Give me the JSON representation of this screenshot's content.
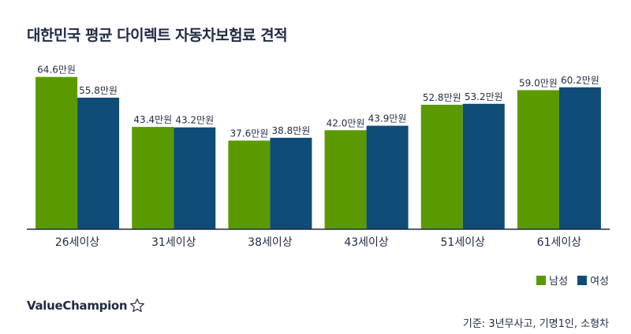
{
  "title": "대한민국 평균 다이렉트 자동차보험료 견적",
  "brand": {
    "name": "ValueChampion",
    "icon": "star-outline-icon"
  },
  "note": "기준: 3년무사고, 기명1인, 소형차",
  "colors": {
    "male": "#5a9a00",
    "female": "#0f4c78",
    "axis": "#1f2a44",
    "text": "#1f2a44"
  },
  "chart_data": {
    "type": "bar",
    "title": "대한민국 평균 다이렉트 자동차보험료 견적",
    "categories": [
      "26세이상",
      "31세이상",
      "38세이상",
      "43세이상",
      "51세이상",
      "61세이상"
    ],
    "series": [
      {
        "name": "남성",
        "values": [
          64.6,
          43.4,
          37.6,
          42.0,
          52.8,
          59.0
        ],
        "labels": [
          "64.6만원",
          "43.4만원",
          "37.6만원",
          "42.0만원",
          "52.8만원",
          "59.0만원"
        ]
      },
      {
        "name": "여성",
        "values": [
          55.8,
          43.2,
          38.8,
          43.9,
          53.2,
          60.2
        ],
        "labels": [
          "55.8만원",
          "43.2만원",
          "38.8만원",
          "43.9만원",
          "53.2만원",
          "60.2만원"
        ]
      }
    ],
    "ylim": [
      0,
      70
    ],
    "grid": false,
    "legend": "bottom-right"
  }
}
